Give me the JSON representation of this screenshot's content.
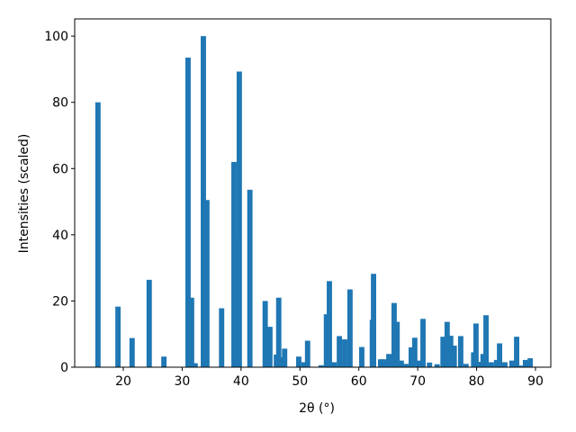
{
  "chart_data": {
    "type": "bar",
    "xlabel": "2θ (°)",
    "ylabel": "Intensities (scaled)",
    "color": "#1f77b4",
    "x": [
      15.7,
      19.1,
      21.5,
      24.4,
      26.9,
      31.0,
      31.6,
      32.2,
      33.6,
      34.2,
      36.7,
      38.8,
      39.3,
      39.7,
      41.5,
      44.1,
      44.9,
      46.0,
      46.4,
      46.9,
      47.4,
      49.8,
      50.7,
      51.3,
      53.6,
      54.5,
      55.0,
      55.8,
      56.7,
      57.6,
      58.5,
      60.5,
      62.3,
      62.5,
      63.7,
      64.3,
      65.1,
      66.0,
      66.5,
      67.2,
      68.0,
      68.9,
      69.5,
      70.3,
      70.9,
      72.0,
      73.3,
      74.3,
      75.0,
      75.6,
      76.2,
      77.3,
      78.2,
      79.5,
      79.9,
      80.7,
      81.1,
      81.6,
      82.5,
      83.4,
      83.9,
      84.8,
      86.0,
      86.8,
      87.7,
      88.3,
      89.1
    ],
    "values": [
      80,
      18.3,
      8.8,
      26.4,
      3.2,
      93.5,
      21,
      1.2,
      100,
      50.5,
      17.8,
      62,
      38.5,
      89.3,
      53.6,
      20,
      12.2,
      3.8,
      21,
      3,
      5.6,
      3.2,
      1.5,
      8,
      0.6,
      16,
      26,
      1.5,
      9.4,
      8.4,
      23.5,
      6.1,
      14.3,
      28.2,
      2.4,
      2.4,
      4,
      19.4,
      13.7,
      2,
      1,
      6,
      8.9,
      2,
      14.6,
      1.4,
      0.9,
      9.2,
      13.7,
      9.5,
      6.5,
      9.4,
      1,
      4.5,
      13.2,
      1.6,
      4,
      15.7,
      1.5,
      2.2,
      7.2,
      1.5,
      2,
      9.2,
      0.5,
      2.2,
      2.7
    ],
    "xlim": [
      11.75,
      92.6
    ],
    "ylim": [
      0,
      105.2
    ],
    "xticks": [
      20,
      30,
      40,
      50,
      60,
      70,
      80,
      90
    ],
    "yticks": [
      0,
      20,
      40,
      60,
      80,
      100
    ]
  }
}
